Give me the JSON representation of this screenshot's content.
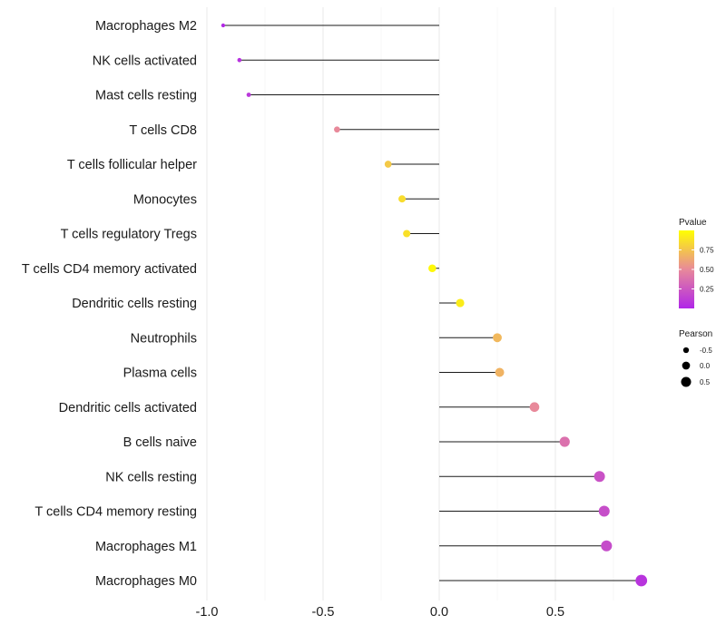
{
  "chart_data": {
    "type": "scatter",
    "subtype": "lollipop",
    "title": "",
    "xlabel": "",
    "ylabel": "",
    "xlim": [
      -1.0,
      0.9
    ],
    "grid": true,
    "xticks": [
      -1.0,
      -0.5,
      0.0,
      0.5
    ],
    "xtick_labels": [
      "-1.0",
      "-0.5",
      "0.0",
      "0.5"
    ],
    "categories": [
      "Macrophages M2",
      "NK cells activated",
      "Mast cells resting",
      "T cells CD8",
      "T cells follicular helper",
      "Monocytes",
      "T cells regulatory  Tregs",
      "T cells CD4 memory activated",
      "Dendritic cells resting",
      "Neutrophils",
      "Plasma cells",
      "Dendritic cells activated",
      "B cells naive",
      "NK cells resting",
      "T cells CD4 memory resting",
      "Macrophages M1",
      "Macrophages M0"
    ],
    "pearson": [
      -0.93,
      -0.86,
      -0.82,
      -0.44,
      -0.22,
      -0.16,
      -0.14,
      -0.03,
      0.09,
      0.25,
      0.26,
      0.41,
      0.54,
      0.69,
      0.71,
      0.72,
      0.87
    ],
    "pvalue": [
      0.02,
      0.06,
      0.09,
      0.5,
      0.77,
      0.85,
      0.87,
      0.97,
      0.92,
      0.7,
      0.68,
      0.5,
      0.38,
      0.22,
      0.2,
      0.19,
      0.07
    ],
    "legend": {
      "position": "right",
      "color_title": "Pvalue",
      "color_ticks": [
        0.75,
        0.5,
        0.25
      ],
      "color_tick_labels": [
        "0.75",
        "0.50",
        "0.25"
      ],
      "color_range": [
        0.0,
        1.0
      ],
      "colors": {
        "low": "#b026e8",
        "mid": "#e8899a",
        "high": "#ffff00"
      },
      "size_title": "Pearson",
      "size_values": [
        -0.5,
        0.0,
        0.5
      ],
      "size_labels": [
        "-0.5",
        "0.0",
        "0.5"
      ]
    }
  }
}
